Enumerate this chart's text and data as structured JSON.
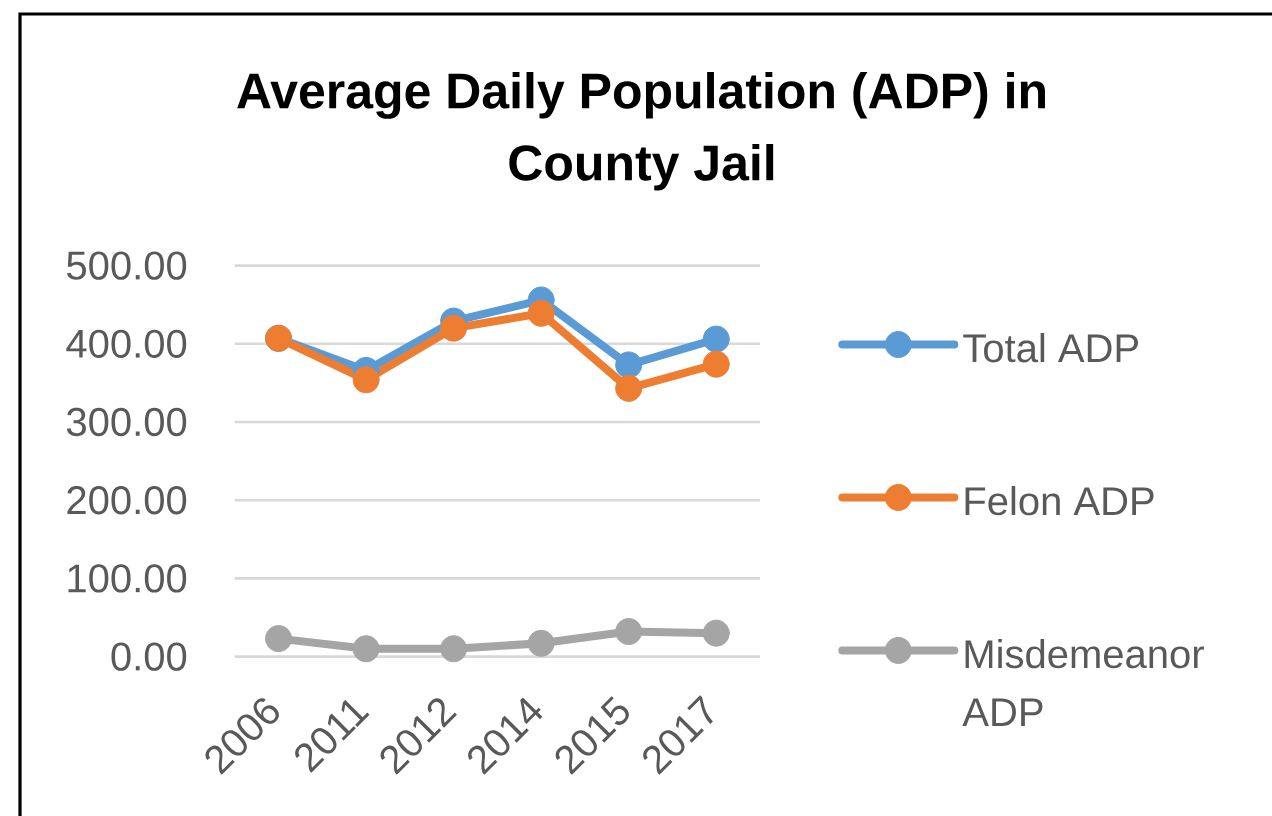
{
  "chart_data": {
    "type": "line",
    "title": "Average Daily Population (ADP) in County Jail",
    "categories": [
      "2006",
      "2011",
      "2012",
      "2014",
      "2015",
      "2017"
    ],
    "series": [
      {
        "name": "Total ADP",
        "color": "#5b9bd5",
        "values": [
          407,
          366,
          429,
          456,
          373,
          406
        ]
      },
      {
        "name": "Felon ADP",
        "color": "#ed7d31",
        "values": [
          407,
          354,
          420,
          439,
          343,
          374
        ]
      },
      {
        "name": "Misdemeanor ADP",
        "color": "#a5a5a5",
        "values": [
          23,
          10,
          10,
          17,
          32,
          30
        ]
      }
    ],
    "ylim": [
      0,
      500
    ],
    "yticks": [
      {
        "value": 0,
        "label": "0.00"
      },
      {
        "value": 100,
        "label": "100.00"
      },
      {
        "value": 200,
        "label": "200.00"
      },
      {
        "value": 300,
        "label": "300.00"
      },
      {
        "value": 400,
        "label": "400.00"
      },
      {
        "value": 500,
        "label": "500.00"
      }
    ],
    "grid": "y",
    "legend": "right",
    "marker": "circle",
    "line_style": "solid"
  }
}
